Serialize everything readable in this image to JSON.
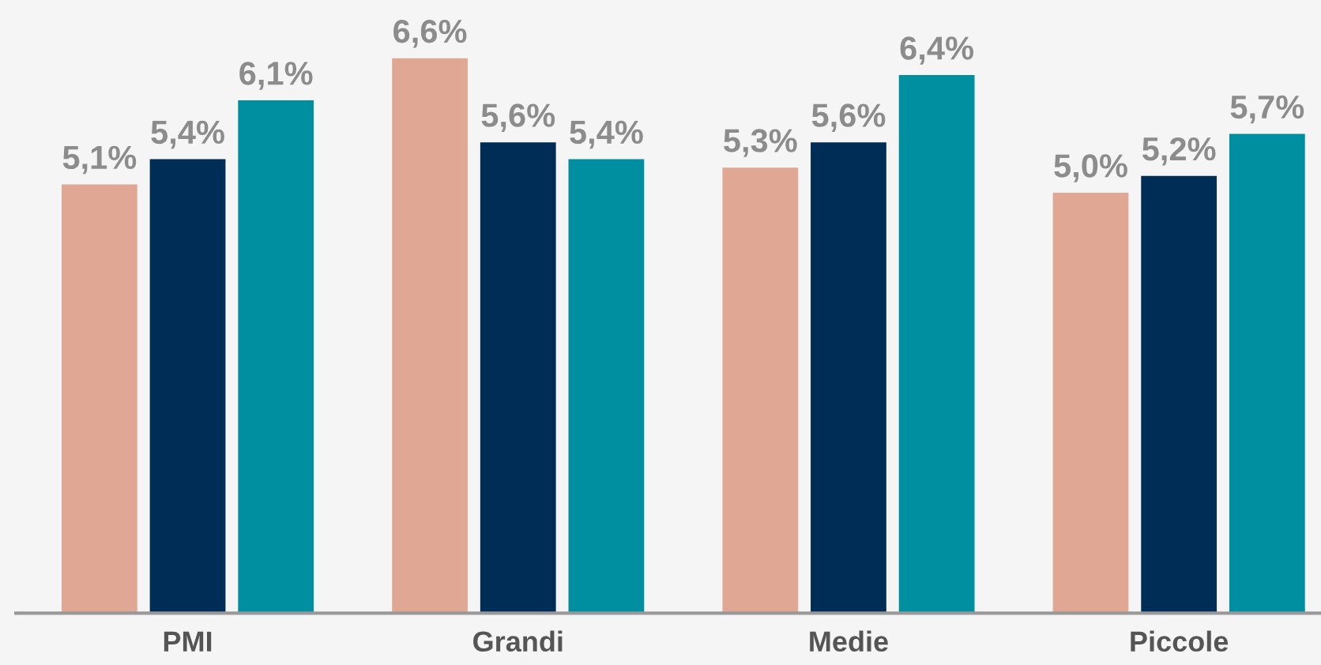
{
  "chart_data": {
    "type": "bar",
    "categories": [
      "PMI",
      "Grandi",
      "Medie",
      "Piccole"
    ],
    "series": [
      {
        "color": "#e0a894",
        "values": [
          5.1,
          6.6,
          5.3,
          5.0
        ],
        "value_labels": [
          "5,1%",
          "6,6%",
          "5,3%",
          "5,0%"
        ]
      },
      {
        "color": "#002d56",
        "values": [
          5.4,
          5.6,
          5.6,
          5.2
        ],
        "value_labels": [
          "5,4%",
          "5,6%",
          "5,6%",
          "5,2%"
        ]
      },
      {
        "color": "#008fa0",
        "values": [
          6.1,
          5.4,
          6.4,
          5.7
        ],
        "value_labels": [
          "6,1%",
          "5,4%",
          "6,4%",
          "5,7%"
        ]
      }
    ],
    "grid": false,
    "legend": false
  }
}
